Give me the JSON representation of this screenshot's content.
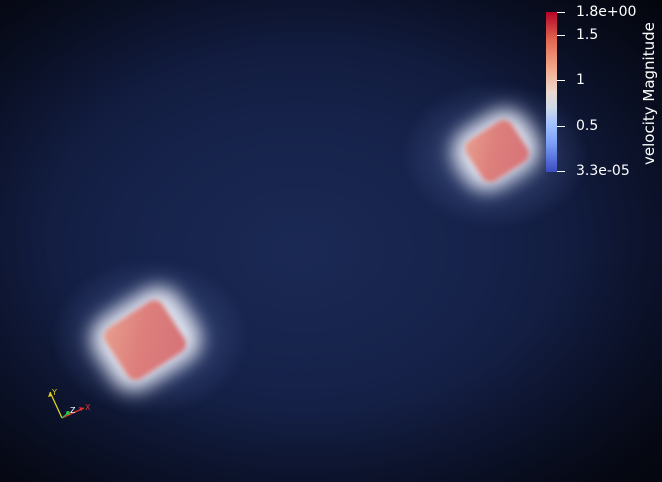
{
  "colorbar": {
    "title": "velocity Magnitude",
    "ticks": [
      {
        "label": "1.8e+00",
        "value": 1.8
      },
      {
        "label": "1.5",
        "value": 1.5
      },
      {
        "label": "1",
        "value": 1.0
      },
      {
        "label": "0.5",
        "value": 0.5
      },
      {
        "label": "3.3e-05",
        "value": 3.3e-05
      }
    ],
    "range": [
      3.3e-05,
      1.8
    ],
    "colormap": [
      "#3b4cc0",
      "#a3c2fe",
      "#ebd9cf",
      "#f4a889",
      "#b40426"
    ]
  },
  "axes_widget": {
    "x_label": "X",
    "y_label": "Y",
    "z_label": "Z",
    "x_color": "#e03030",
    "y_color": "#e0d020",
    "z_color": "#30c040"
  },
  "scene": {
    "background": "#16224a",
    "blob_color": "#d97a7a",
    "halo_color": "#eef0f8"
  }
}
